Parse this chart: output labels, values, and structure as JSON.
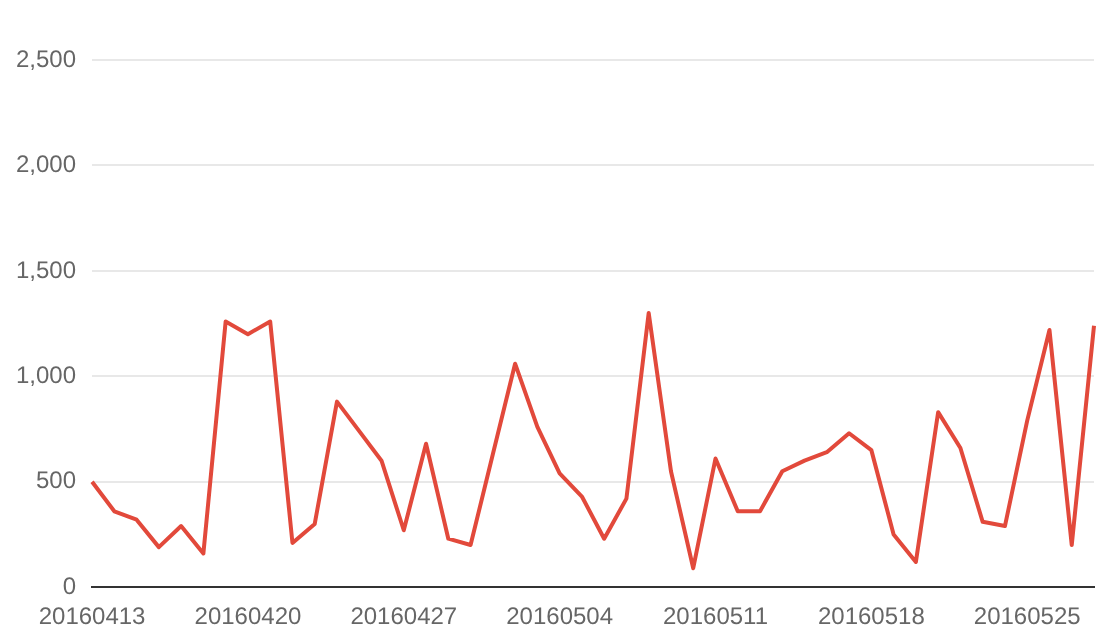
{
  "chart_data": {
    "type": "line",
    "categories": [
      "20160413",
      null,
      null,
      null,
      null,
      null,
      null,
      "20160420",
      null,
      null,
      null,
      null,
      null,
      null,
      "20160427",
      null,
      null,
      null,
      null,
      null,
      null,
      "20160504",
      null,
      null,
      null,
      null,
      null,
      null,
      "20160511",
      null,
      null,
      null,
      null,
      null,
      null,
      "20160518",
      null,
      null,
      null,
      null,
      null,
      null,
      "20160525",
      null,
      null,
      null
    ],
    "series": [
      {
        "color": "#e2493b",
        "values": [
          500,
          360,
          320,
          190,
          290,
          160,
          1260,
          1200,
          1260,
          210,
          300,
          880,
          740,
          600,
          270,
          680,
          230,
          200,
          630,
          1060,
          760,
          540,
          430,
          230,
          420,
          1300,
          550,
          90,
          610,
          360,
          360,
          550,
          600,
          640,
          730,
          650,
          250,
          120,
          830,
          660,
          310,
          290,
          790,
          1220,
          200,
          1240
        ]
      }
    ],
    "ylim": [
      0,
      2500
    ],
    "yticks": [
      0,
      {
        "value": 500,
        "label": "500"
      },
      {
        "value": 1000,
        "label": "1,000"
      },
      {
        "value": 1500,
        "label": "1,500"
      },
      {
        "value": 2000,
        "label": "2,000"
      },
      {
        "value": 2500,
        "label": "2,500"
      }
    ],
    "grid": "y",
    "marker": "none",
    "line_style": "solid"
  }
}
